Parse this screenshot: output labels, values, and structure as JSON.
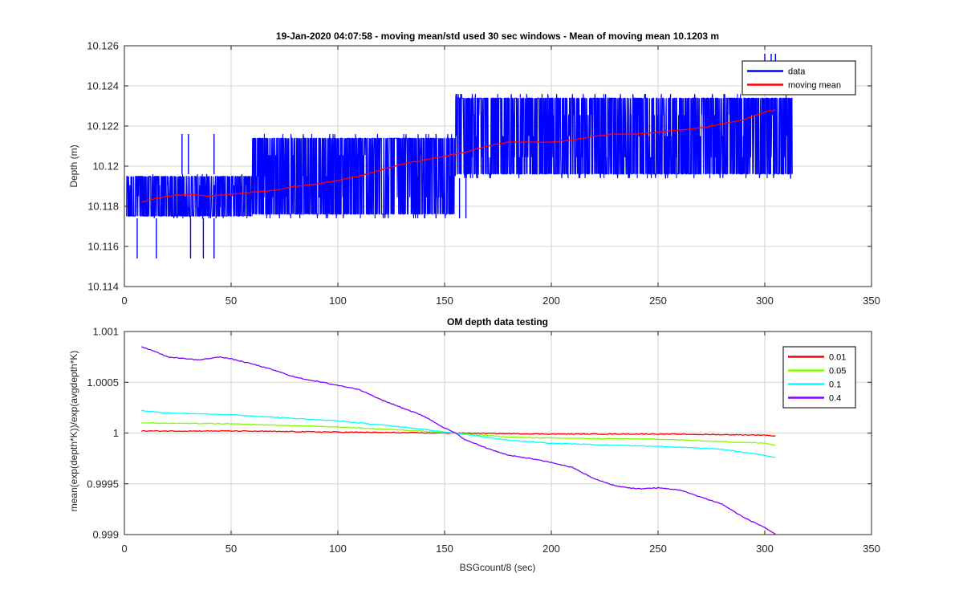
{
  "chart_data": [
    {
      "type": "line",
      "title": "19-Jan-2020 04:07:58 - moving mean/std used 30 sec windows - Mean of moving mean 10.1203 m",
      "xlabel": "",
      "ylabel": "Depth (m)",
      "xlim": [
        0,
        350
      ],
      "ylim": [
        10.114,
        10.126
      ],
      "grid": true,
      "legend_position": "top-right",
      "xticks": [
        0,
        50,
        100,
        150,
        200,
        250,
        300,
        350
      ],
      "xtick_labels": [
        "0",
        "50",
        "100",
        "150",
        "200",
        "250",
        "300",
        "350"
      ],
      "yticks": [
        10.114,
        10.116,
        10.118,
        10.12,
        10.122,
        10.124,
        10.126
      ],
      "ytick_labels": [
        "10.114",
        "10.116",
        "10.118",
        "10.12",
        "10.122",
        "10.124",
        "10.126"
      ],
      "series": [
        {
          "name": "data",
          "color": "#0000ff",
          "kind": "noisy-quantized",
          "x_range": [
            1,
            313
          ],
          "segments": [
            {
              "x": [
                1,
                60
              ],
              "lo": 10.1174,
              "hi": 10.1196
            },
            {
              "x": [
                60,
                155
              ],
              "lo": 10.1174,
              "hi": 10.1216
            },
            {
              "x": [
                155,
                200
              ],
              "lo": 10.1194,
              "hi": 10.1236
            },
            {
              "x": [
                200,
                313
              ],
              "lo": 10.1194,
              "hi": 10.1236
            }
          ],
          "spikes": [
            [
              6,
              10.1154
            ],
            [
              15,
              10.1154
            ],
            [
              31,
              10.1154
            ],
            [
              37,
              10.1154
            ],
            [
              27,
              10.1216
            ],
            [
              30,
              10.1216
            ],
            [
              42,
              10.1216
            ],
            [
              42,
              10.1154
            ],
            [
              300,
              10.1256
            ],
            [
              303,
              10.1256
            ],
            [
              305,
              10.1256
            ],
            [
              146,
              10.1174
            ],
            [
              157,
              10.1174
            ],
            [
              160,
              10.1174
            ],
            [
              170,
              10.1236
            ]
          ]
        },
        {
          "name": "moving mean",
          "color": "#ff0000",
          "x": [
            8,
            15,
            20,
            30,
            40,
            50,
            60,
            70,
            80,
            90,
            100,
            110,
            120,
            130,
            140,
            150,
            160,
            170,
            180,
            190,
            200,
            210,
            220,
            230,
            240,
            250,
            260,
            270,
            280,
            290,
            300,
            305
          ],
          "y": [
            10.1182,
            10.1184,
            10.1185,
            10.1186,
            10.1185,
            10.1186,
            10.1187,
            10.1188,
            10.119,
            10.1191,
            10.1193,
            10.1195,
            10.1198,
            10.1201,
            10.1203,
            10.1205,
            10.1207,
            10.121,
            10.1212,
            10.1212,
            10.1212,
            10.1213,
            10.1215,
            10.1216,
            10.1216,
            10.1217,
            10.1218,
            10.1219,
            10.1221,
            10.1223,
            10.1227,
            10.1228
          ]
        }
      ]
    },
    {
      "type": "line",
      "title": "OM depth data testing",
      "xlabel": "BSGcount/8 (sec)",
      "ylabel": "mean(exp(depth*K))/exp(avgdepth*K)",
      "xlim": [
        0,
        350
      ],
      "ylim": [
        0.999,
        1.001
      ],
      "grid": true,
      "legend_position": "top-right",
      "xticks": [
        0,
        50,
        100,
        150,
        200,
        250,
        300,
        350
      ],
      "xtick_labels": [
        "0",
        "50",
        "100",
        "150",
        "200",
        "250",
        "300",
        "350"
      ],
      "yticks": [
        0.999,
        0.9995,
        1.0,
        1.0005,
        1.001
      ],
      "ytick_labels": [
        "0.999",
        "0.9995",
        "1",
        "1.0005",
        "1.001"
      ],
      "series": [
        {
          "name": "0.01",
          "color": "#ff0000",
          "x": [
            8,
            50,
            100,
            150,
            155,
            200,
            250,
            300,
            305
          ],
          "y": [
            1.00002,
            1.00002,
            1.00001,
            1.0,
            1.0,
            0.99999,
            0.99999,
            0.99998,
            0.99997
          ]
        },
        {
          "name": "0.05",
          "color": "#80ff00",
          "x": [
            8,
            50,
            100,
            130,
            155,
            180,
            200,
            250,
            300,
            305
          ],
          "y": [
            1.0001,
            1.00009,
            1.00006,
            1.00003,
            1.0,
            0.99996,
            0.99995,
            0.99994,
            0.9999,
            0.99988
          ]
        },
        {
          "name": "0.1",
          "color": "#00ffff",
          "x": [
            8,
            20,
            50,
            100,
            130,
            155,
            180,
            200,
            230,
            250,
            280,
            300,
            305
          ],
          "y": [
            1.00022,
            1.0002,
            1.00018,
            1.00012,
            1.00006,
            1.0,
            0.99993,
            0.9999,
            0.99988,
            0.99987,
            0.99984,
            0.99978,
            0.99976
          ]
        },
        {
          "name": "0.4",
          "color": "#8000ff",
          "x": [
            8,
            15,
            20,
            30,
            35,
            45,
            50,
            60,
            70,
            80,
            100,
            110,
            120,
            130,
            140,
            150,
            155,
            160,
            170,
            180,
            190,
            200,
            210,
            220,
            230,
            240,
            250,
            260,
            270,
            280,
            290,
            300,
            305
          ],
          "y": [
            1.00085,
            1.0008,
            1.00075,
            1.00073,
            1.00072,
            1.00075,
            1.00073,
            1.00068,
            1.00062,
            1.00055,
            1.00047,
            1.00043,
            1.00033,
            1.00025,
            1.00017,
            1.00005,
            1.0,
            0.99993,
            0.99985,
            0.99978,
            0.99975,
            0.99971,
            0.99966,
            0.99955,
            0.99948,
            0.99945,
            0.99946,
            0.99944,
            0.99937,
            0.9993,
            0.99917,
            0.99907,
            0.999
          ]
        }
      ]
    }
  ]
}
